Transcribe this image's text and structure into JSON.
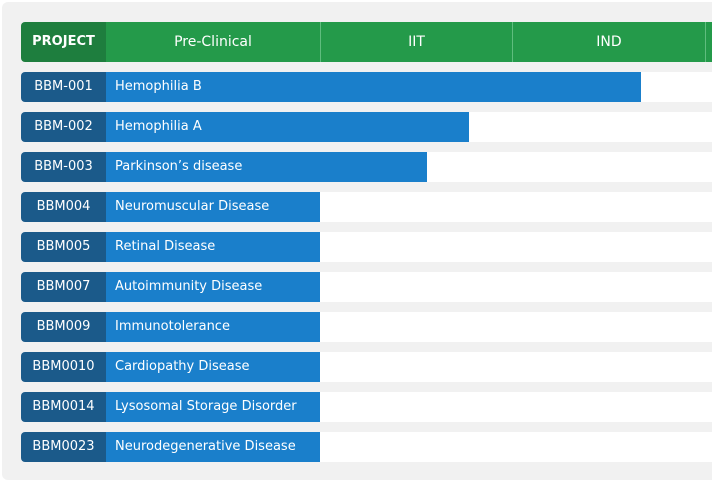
{
  "header": {
    "columns": [
      "PROJECT",
      "Pre-Clinical",
      "IIT",
      "IND"
    ]
  },
  "rows": [
    {
      "id": "BBM-001",
      "name": "Hemophilia B"
    },
    {
      "id": "BBM-002",
      "name": "Hemophilia A"
    },
    {
      "id": "BBM-003",
      "name": "Parkinson’s disease"
    },
    {
      "id": "BBM004",
      "name": "Neuromuscular Disease"
    },
    {
      "id": "BBM005",
      "name": "Retinal Disease"
    },
    {
      "id": "BBM007",
      "name": "Autoimmunity Disease"
    },
    {
      "id": "BBM009",
      "name": "Immunotolerance"
    },
    {
      "id": "BBM0010",
      "name": "Cardiopathy Disease"
    },
    {
      "id": "BBM0014",
      "name": "Lysosomal Storage Disorder"
    },
    {
      "id": "BBM0023",
      "name": "Neurodegenerative Disease"
    }
  ]
}
